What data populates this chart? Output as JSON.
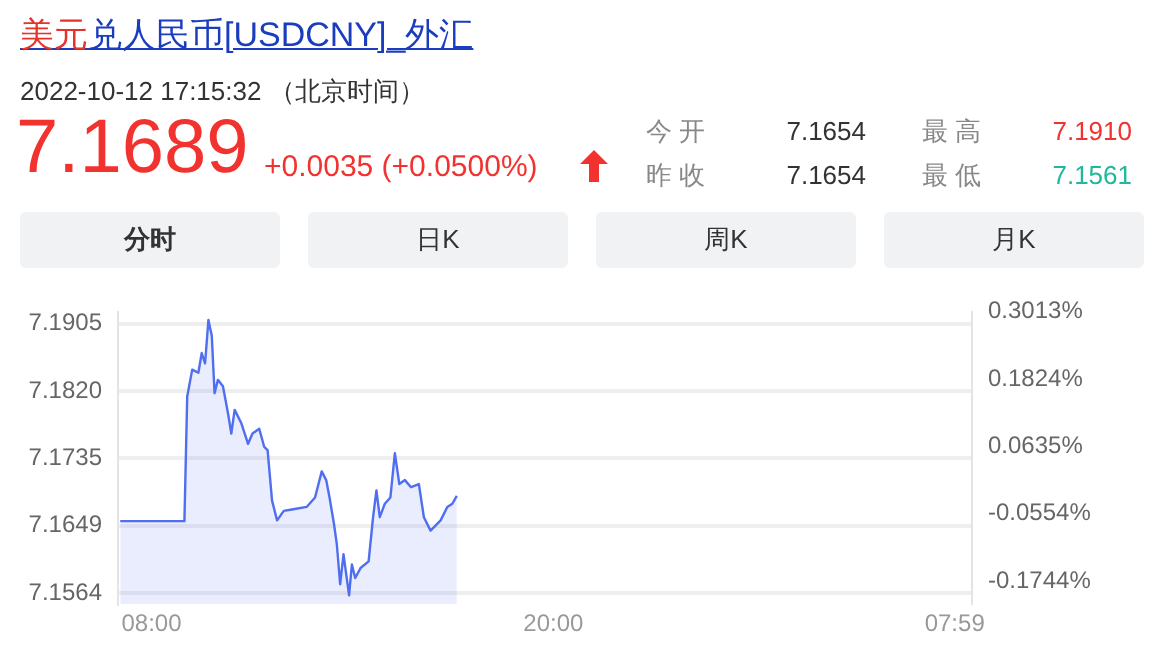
{
  "chart_data": {
    "type": "area",
    "title": "美元兑人民币[USDCNY]_外汇",
    "subtitle": "2022-10-12 17:15:32 （北京时间）",
    "annotations": [
      "7.1689",
      "+0.0035 (+0.0500%)",
      "今 开",
      "7.1654",
      "最 高",
      "7.1910",
      "昨 收",
      "7.1654",
      "最 低",
      "7.1561",
      "分时",
      "日K",
      "周K",
      "月K"
    ],
    "x": [
      "2022-10-12T07:04",
      "2022-10-12T08:59",
      "2022-10-12T09:04",
      "2022-10-12T09:13",
      "2022-10-12T09:24",
      "2022-10-12T09:30",
      "2022-10-12T09:36",
      "2022-10-12T09:42",
      "2022-10-12T09:48",
      "2022-10-12T09:53",
      "2022-10-12T09:59",
      "2022-10-12T10:08",
      "2022-10-12T10:17",
      "2022-10-12T10:23",
      "2022-10-12T10:29",
      "2022-10-12T10:41",
      "2022-10-12T10:53",
      "2022-10-12T11:01",
      "2022-10-12T11:13",
      "2022-10-12T11:22",
      "2022-10-12T11:28",
      "2022-10-12T11:36",
      "2022-10-12T11:45",
      "2022-10-12T11:57",
      "2022-10-12T12:14",
      "2022-10-12T12:38",
      "2022-10-12T12:53",
      "2022-10-12T13:05",
      "2022-10-12T13:13",
      "2022-10-12T13:19",
      "2022-10-12T13:27",
      "2022-10-12T13:32",
      "2022-10-12T13:38",
      "2022-10-12T13:44",
      "2022-10-12T13:54",
      "2022-10-12T13:59",
      "2022-10-12T14:05",
      "2022-10-12T14:15",
      "2022-10-12T14:29",
      "2022-10-12T14:37",
      "2022-10-12T14:43",
      "2022-10-12T14:49",
      "2022-10-12T14:58",
      "2022-10-12T15:08",
      "2022-10-12T15:16",
      "2022-10-12T15:24",
      "2022-10-12T15:34",
      "2022-10-12T15:45",
      "2022-10-12T15:59",
      "2022-10-12T16:08",
      "2022-10-12T16:20",
      "2022-10-12T16:38",
      "2022-10-12T16:50",
      "2022-10-12T16:59",
      "2022-10-12T17:07"
    ],
    "series": [
      {
        "color": "#4f6ef0",
        "values": [
          7.1655,
          7.1655,
          7.1813,
          7.1847,
          7.1843,
          7.1868,
          7.1855,
          7.191,
          7.189,
          7.1817,
          7.1834,
          7.1826,
          7.1792,
          7.1766,
          7.1796,
          7.1779,
          7.1753,
          7.1766,
          7.1772,
          7.1749,
          7.1745,
          7.1681,
          7.1656,
          7.1668,
          7.167,
          7.1673,
          7.1685,
          7.1718,
          7.1707,
          7.1685,
          7.1651,
          7.1626,
          7.1575,
          7.1613,
          7.1561,
          7.16,
          7.1583,
          7.1596,
          7.1604,
          7.166,
          7.1694,
          7.166,
          7.1677,
          7.1685,
          7.1741,
          7.1702,
          7.1707,
          7.1698,
          7.1702,
          7.166,
          7.1643,
          7.1656,
          7.1673,
          7.1677,
          7.1687
        ]
      }
    ],
    "xlim": [
      "2022-10-12T07:00",
      "2022-10-13T08:30"
    ],
    "xticks": [
      {
        "value": "2022-10-12T08:00",
        "label": "08:00"
      },
      {
        "value": "2022-10-12T20:00",
        "label": "20:00"
      },
      {
        "value": "2022-10-13T07:59",
        "label": "07:59"
      }
    ],
    "ylim": [
      7.155,
      7.192
    ],
    "yticks": [
      7.1564,
      7.1649,
      7.1735,
      {
        "value": 7.182,
        "label": "7.1820"
      },
      7.1905
    ],
    "y2lim": [
      -0.1939,
      0.3222
    ],
    "y2ticks": [
      {
        "value": -0.1744,
        "label": "-0.1744%"
      },
      {
        "value": -0.0554,
        "label": "-0.0554%"
      },
      {
        "value": 0.0635,
        "label": "0.0635%"
      },
      {
        "value": 0.1824,
        "label": "0.1824%"
      },
      {
        "value": 0.3013,
        "label": "0.3013%"
      }
    ],
    "grid": "y",
    "legend": false
  }
}
